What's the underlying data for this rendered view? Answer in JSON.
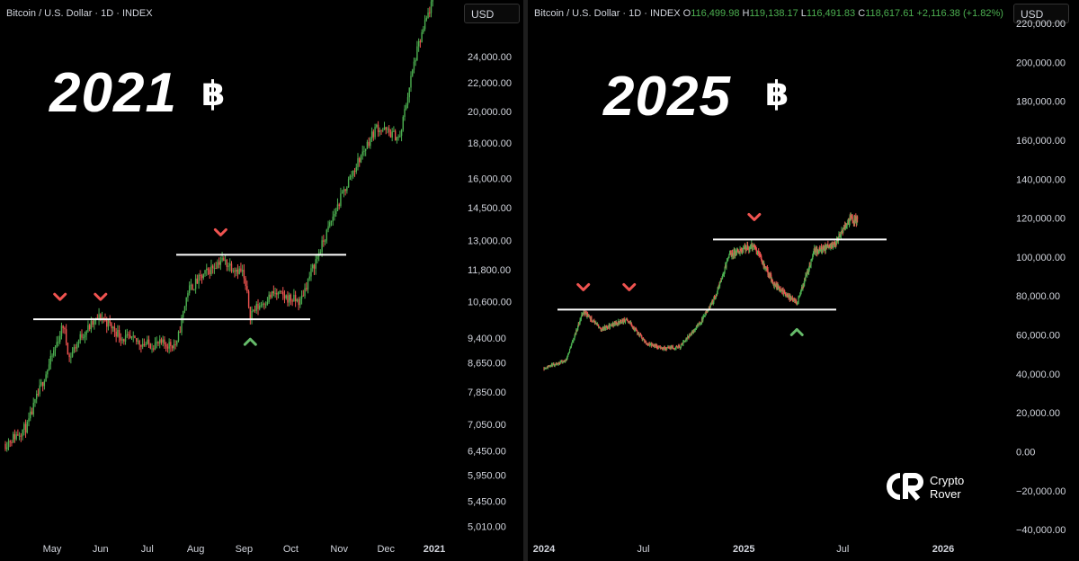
{
  "left_chart": {
    "header": "Bitcoin / U.S. Dollar · 1D · INDEX",
    "currency_button": "USD",
    "year_label": "2021",
    "btc_symbol": "฿",
    "colors": {
      "up": "#4caf50",
      "down": "#ef5350",
      "line": "#ffffff",
      "marker_down": "#ef5350",
      "marker_up": "#66bb6a"
    }
  },
  "right_chart": {
    "header": "Bitcoin / U.S. Dollar · 1D · INDEX",
    "ohlc": {
      "o_label": "O",
      "o": "116,499.98",
      "h_label": "H",
      "h": "119,138.17",
      "l_label": "L",
      "l": "116,491.83",
      "c_label": "C",
      "c": "118,617.61",
      "change": "+2,116.38 (+1.82%)"
    },
    "currency_button": "USD",
    "year_label": "2025",
    "btc_symbol": "฿"
  },
  "branding": {
    "line1": "Crypto",
    "line2": "Rover"
  },
  "chart_data": [
    {
      "type": "candlestick",
      "scale": "log",
      "title": "Bitcoin / U.S. Dollar · 1D · INDEX",
      "y_ticks": [
        "24,000.00",
        "22,000.00",
        "20,000.00",
        "18,000.00",
        "16,000.00",
        "14,500.00",
        "13,000.00",
        "11,800.00",
        "10,600.00",
        "9,400.00",
        "8,650.00",
        "7,850.00",
        "7,050.00",
        "6,450.00",
        "5,950.00",
        "5,450.00",
        "5,010.00"
      ],
      "x_ticks": [
        "May",
        "Jun",
        "Jul",
        "Aug",
        "Sep",
        "Oct",
        "Nov",
        "Dec",
        "2021"
      ],
      "ylim": [
        4800,
        29000
      ],
      "series": [
        {
          "x": "2020-04-01",
          "close": 6600
        },
        {
          "x": "2020-04-15",
          "close": 7000
        },
        {
          "x": "2020-04-30",
          "close": 8700
        },
        {
          "x": "2020-05-08",
          "close": 9800
        },
        {
          "x": "2020-05-12",
          "close": 8800
        },
        {
          "x": "2020-05-20",
          "close": 9500
        },
        {
          "x": "2020-06-01",
          "close": 10100
        },
        {
          "x": "2020-06-15",
          "close": 9400
        },
        {
          "x": "2020-07-01",
          "close": 9200
        },
        {
          "x": "2020-07-20",
          "close": 9200
        },
        {
          "x": "2020-07-27",
          "close": 11000
        },
        {
          "x": "2020-08-17",
          "close": 12200
        },
        {
          "x": "2020-08-31",
          "close": 11700
        },
        {
          "x": "2020-09-05",
          "close": 10200
        },
        {
          "x": "2020-09-20",
          "close": 10900
        },
        {
          "x": "2020-10-07",
          "close": 10600
        },
        {
          "x": "2020-10-21",
          "close": 12800
        },
        {
          "x": "2020-11-05",
          "close": 15500
        },
        {
          "x": "2020-11-25",
          "close": 19000
        },
        {
          "x": "2020-12-10",
          "close": 18300
        },
        {
          "x": "2020-12-20",
          "close": 24000
        },
        {
          "x": "2020-12-31",
          "close": 29000
        }
      ],
      "annotations": {
        "support_level": 10000,
        "resistance_level": 12400,
        "down_markers": [
          "2020-05-06",
          "2020-06-01",
          "2020-08-17"
        ],
        "up_markers": [
          "2020-09-05"
        ]
      }
    },
    {
      "type": "candlestick",
      "scale": "linear",
      "title": "Bitcoin / U.S. Dollar · 1D · INDEX",
      "y_ticks": [
        "220,000.00",
        "200,000.00",
        "180,000.00",
        "160,000.00",
        "140,000.00",
        "120,000.00",
        "100,000.00",
        "80,000.00",
        "60,000.00",
        "40,000.00",
        "20,000.00",
        "0.00",
        "−20,000.00",
        "−40,000.00"
      ],
      "x_ticks": [
        "2024",
        "Jul",
        "2025",
        "Jul",
        "2026"
      ],
      "ylim": [
        -45000,
        232000
      ],
      "series": [
        {
          "x": "2024-01-01",
          "close": 43000
        },
        {
          "x": "2024-02-10",
          "close": 47000
        },
        {
          "x": "2024-03-13",
          "close": 72000
        },
        {
          "x": "2024-04-15",
          "close": 63000
        },
        {
          "x": "2024-06-01",
          "close": 68000
        },
        {
          "x": "2024-07-05",
          "close": 56000
        },
        {
          "x": "2024-08-05",
          "close": 53000
        },
        {
          "x": "2024-09-06",
          "close": 54000
        },
        {
          "x": "2024-10-15",
          "close": 67000
        },
        {
          "x": "2024-11-10",
          "close": 80000
        },
        {
          "x": "2024-12-05",
          "close": 101000
        },
        {
          "x": "2025-01-20",
          "close": 106000
        },
        {
          "x": "2025-02-25",
          "close": 86000
        },
        {
          "x": "2025-04-08",
          "close": 76000
        },
        {
          "x": "2025-05-10",
          "close": 103000
        },
        {
          "x": "2025-06-15",
          "close": 106000
        },
        {
          "x": "2025-07-14",
          "close": 120000
        },
        {
          "x": "2025-07-28",
          "close": 118600
        }
      ],
      "annotations": {
        "support_level": 73000,
        "resistance_level": 109000,
        "down_markers": [
          "2024-03-13",
          "2024-06-05",
          "2025-01-20"
        ],
        "up_markers": [
          "2025-04-08"
        ]
      }
    }
  ]
}
